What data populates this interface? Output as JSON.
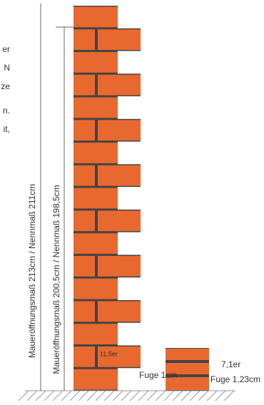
{
  "cut_text": [
    "er",
    "N",
    "ze",
    "n.",
    "it,"
  ],
  "dimensions": {
    "outer": "Maueröffnungsmaß 213cm / Nennmaß 211cm",
    "inner": "Maueröffnungsmaß 200,5cm / Nennmaß 198,5cm"
  },
  "wall_large": {
    "brick": "11,5er",
    "joint": "Fuge 1cm"
  },
  "wall_small": {
    "brick": "7,1er",
    "joint": "Fuge 1,23cm"
  }
}
